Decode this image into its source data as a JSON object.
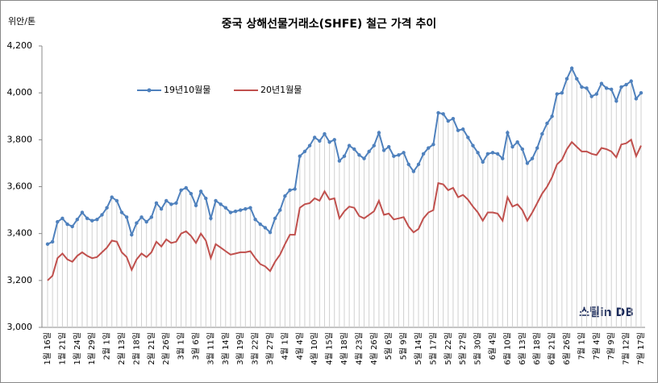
{
  "chart_data": {
    "type": "line",
    "title": "중국 상해선물거래소(SHFE)  철근 가격 추이",
    "y_label": "위안/톤",
    "watermark": "스틸in DB",
    "categories": [
      "1월 16일",
      null,
      null,
      "1월 21일",
      null,
      null,
      "1월 24일",
      null,
      null,
      "1월 29일",
      null,
      null,
      "2월 1일",
      null,
      null,
      "2월 13일",
      null,
      null,
      "2월 18일",
      null,
      null,
      "2월 21일",
      null,
      null,
      "2월 26일",
      null,
      null,
      "3월 1일",
      null,
      null,
      "3월 6일",
      null,
      null,
      "3월 11일",
      null,
      null,
      "3월 14일",
      null,
      null,
      "3월 19일",
      null,
      null,
      "3월 22일",
      null,
      null,
      "3월 27일",
      null,
      null,
      "4월 1일",
      null,
      null,
      "4월 4일",
      null,
      null,
      "4월 10일",
      null,
      null,
      "4월 15일",
      null,
      null,
      "4월 18일",
      null,
      null,
      "4월 23일",
      null,
      null,
      "4월 26일",
      null,
      null,
      "5월 6일",
      null,
      null,
      "5월 9일",
      null,
      null,
      "5월 14일",
      null,
      null,
      "5월 17일",
      null,
      null,
      "5월 22일",
      null,
      null,
      "5월 27일",
      null,
      null,
      "5월 30일",
      null,
      null,
      "6월 4일",
      null,
      null,
      "6월 10일",
      null,
      null,
      "6월 13일",
      null,
      null,
      "6월 18일",
      null,
      null,
      "6월 21일",
      null,
      null,
      "6월 26일",
      null,
      null,
      "7월 1일",
      null,
      null,
      "7월 4일",
      null,
      null,
      "7월 9일",
      null,
      null,
      "7월 12일",
      null,
      null,
      "7월 17일"
    ],
    "series": [
      {
        "name": "19년10월물",
        "color": "#4f81bd",
        "values": [
          3355,
          3365,
          3450,
          3465,
          3440,
          3430,
          3460,
          3490,
          3465,
          3455,
          3460,
          3480,
          3510,
          3555,
          3540,
          3490,
          3470,
          3395,
          3445,
          3470,
          3450,
          3470,
          3530,
          3505,
          3540,
          3525,
          3530,
          3585,
          3595,
          3570,
          3520,
          3580,
          3550,
          3465,
          3540,
          3525,
          3510,
          3490,
          3495,
          3500,
          3505,
          3510,
          3460,
          3440,
          3425,
          3405,
          3465,
          3500,
          3560,
          3585,
          3590,
          3730,
          3750,
          3775,
          3810,
          3795,
          3825,
          3790,
          3800,
          3710,
          3730,
          3775,
          3760,
          3735,
          3720,
          3750,
          3775,
          3830,
          3755,
          3770,
          3730,
          3735,
          3745,
          3695,
          3665,
          3695,
          3740,
          3765,
          3780,
          3915,
          3910,
          3880,
          3890,
          3840,
          3845,
          3810,
          3775,
          3745,
          3705,
          3740,
          3745,
          3740,
          3720,
          3830,
          3770,
          3790,
          3760,
          3700,
          3720,
          3765,
          3825,
          3870,
          3900,
          3995,
          4000,
          4060,
          4105,
          4060,
          4025,
          4020,
          3985,
          3995,
          4040,
          4020,
          4015,
          3965,
          4025,
          4035,
          4050,
          3975,
          4000
        ]
      },
      {
        "name": "20년1월물",
        "color": "#c0504d",
        "values": [
          3200,
          3220,
          3295,
          3315,
          3290,
          3280,
          3305,
          3320,
          3305,
          3295,
          3300,
          3320,
          3340,
          3370,
          3365,
          3320,
          3300,
          3245,
          3290,
          3315,
          3300,
          3320,
          3365,
          3345,
          3375,
          3360,
          3365,
          3400,
          3410,
          3390,
          3360,
          3400,
          3370,
          3295,
          3355,
          3340,
          3325,
          3310,
          3315,
          3320,
          3320,
          3325,
          3295,
          3270,
          3260,
          3240,
          3280,
          3310,
          3355,
          3395,
          3395,
          3510,
          3525,
          3530,
          3550,
          3540,
          3580,
          3545,
          3550,
          3465,
          3495,
          3515,
          3510,
          3475,
          3465,
          3480,
          3495,
          3540,
          3480,
          3485,
          3460,
          3465,
          3470,
          3430,
          3405,
          3420,
          3465,
          3490,
          3500,
          3615,
          3610,
          3585,
          3595,
          3555,
          3565,
          3545,
          3515,
          3490,
          3455,
          3490,
          3490,
          3485,
          3455,
          3555,
          3515,
          3525,
          3500,
          3455,
          3490,
          3530,
          3570,
          3600,
          3640,
          3695,
          3715,
          3760,
          3790,
          3770,
          3750,
          3750,
          3740,
          3735,
          3765,
          3760,
          3750,
          3725,
          3780,
          3785,
          3800,
          3730,
          3775
        ]
      }
    ],
    "ylim": [
      3000,
      4200
    ],
    "yticks": [
      {
        "value": 3000,
        "label": "3,000"
      },
      {
        "value": 3200,
        "label": "3,200"
      },
      {
        "value": 3400,
        "label": "3,400"
      },
      {
        "value": 3600,
        "label": "3,600"
      },
      {
        "value": 3800,
        "label": "3,800"
      },
      {
        "value": 4000,
        "label": "4,000"
      },
      {
        "value": 4200,
        "label": "4,200"
      }
    ],
    "drop_lines": true
  }
}
